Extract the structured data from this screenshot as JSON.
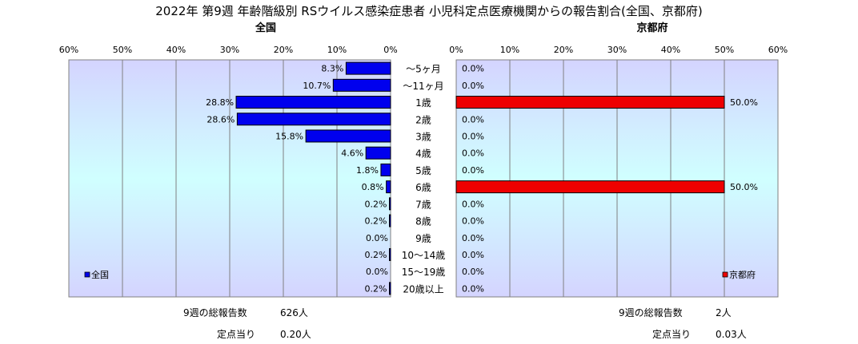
{
  "chart_data": {
    "type": "bar",
    "title": "2022年 第9週 年齢階級別 RSウイルス感染症患者 小児科定点医療機関からの報告割合(全国、京都府)",
    "categories": [
      "～5ヶ月",
      "～11ヶ月",
      "1歳",
      "2歳",
      "3歳",
      "4歳",
      "5歳",
      "6歳",
      "7歳",
      "8歳",
      "9歳",
      "10～14歳",
      "15～19歳",
      "20歳以上"
    ],
    "axis_ticks": [
      "60%",
      "50%",
      "40%",
      "30%",
      "20%",
      "10%",
      "0%"
    ],
    "axis_ticks_right": [
      "0%",
      "10%",
      "20%",
      "30%",
      "40%",
      "50%",
      "60%"
    ],
    "xlim": [
      0,
      60
    ],
    "orientation": "horizontal",
    "grid": true,
    "series": [
      {
        "name": "全国",
        "panel_title": "全国",
        "color": "#0000ee",
        "values": [
          8.3,
          10.7,
          28.8,
          28.6,
          15.8,
          4.6,
          1.8,
          0.8,
          0.2,
          0.2,
          0.0,
          0.2,
          0.0,
          0.2
        ],
        "labels": [
          "8.3%",
          "10.7%",
          "28.8%",
          "28.6%",
          "15.8%",
          "4.6%",
          "1.8%",
          "0.8%",
          "0.2%",
          "0.2%",
          "0.0%",
          "0.2%",
          "0.0%",
          "0.2%"
        ]
      },
      {
        "name": "京都府",
        "panel_title": "京都府",
        "color": "#ee0000",
        "values": [
          0.0,
          0.0,
          50.0,
          0.0,
          0.0,
          0.0,
          0.0,
          50.0,
          0.0,
          0.0,
          0.0,
          0.0,
          0.0,
          0.0
        ],
        "labels": [
          "0.0%",
          "0.0%",
          "50.0%",
          "0.0%",
          "0.0%",
          "0.0%",
          "0.0%",
          "50.0%",
          "0.0%",
          "0.0%",
          "0.0%",
          "0.0%",
          "0.0%",
          "0.0%"
        ]
      }
    ]
  },
  "footer": {
    "left_line1_label": "9週の総報告数",
    "left_line1_value": "626人",
    "left_line2_label": "定点当り",
    "left_line2_value": "0.20人",
    "right_line1_label": "9週の総報告数",
    "right_line1_value": "2人",
    "right_line2_label": "定点当り",
    "right_line2_value": "0.03人"
  }
}
